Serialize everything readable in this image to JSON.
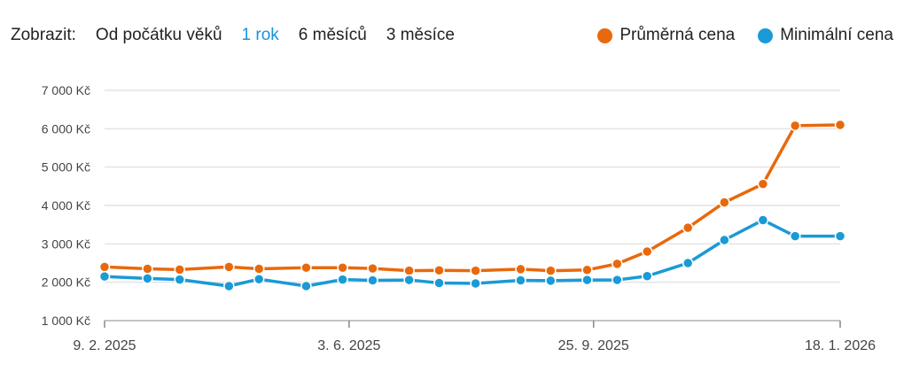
{
  "controls": {
    "show_label": "Zobrazit:",
    "ranges": [
      {
        "label": "Od počátku věků",
        "active": false
      },
      {
        "label": "1 rok",
        "active": true
      },
      {
        "label": "6 měsíců",
        "active": false
      },
      {
        "label": "3 měsíce",
        "active": false
      }
    ]
  },
  "colors": {
    "avg": "#e8690c",
    "min": "#1a9ad6",
    "grid": "#e4e4e4",
    "axis": "#888888"
  },
  "chart_data": {
    "type": "line",
    "title": "",
    "xlabel": "",
    "ylabel": "",
    "ylim": [
      1000,
      7000
    ],
    "y_ticks": [
      1000,
      2000,
      3000,
      4000,
      5000,
      6000,
      7000
    ],
    "y_tick_labels": [
      "1 000 Kč",
      "2 000 Kč",
      "3 000 Kč",
      "4 000 Kč",
      "5 000 Kč",
      "6 000 Kč",
      "7 000 Kč"
    ],
    "x_tick_labels": [
      "9. 2. 2025",
      "3. 6. 2025",
      "25. 9. 2025",
      "18. 1. 2026"
    ],
    "x_tick_dates": [
      "2025-02-09",
      "2025-06-03",
      "2025-09-25",
      "2026-01-18"
    ],
    "x": [
      "2025-02-09",
      "2025-03-01",
      "2025-03-16",
      "2025-04-08",
      "2025-04-22",
      "2025-05-14",
      "2025-05-31",
      "2025-06-14",
      "2025-07-01",
      "2025-07-15",
      "2025-08-01",
      "2025-08-22",
      "2025-09-05",
      "2025-09-22",
      "2025-10-06",
      "2025-10-20",
      "2025-11-08",
      "2025-11-25",
      "2025-12-13",
      "2025-12-28",
      "2026-01-18"
    ],
    "series": [
      {
        "name": "Průměrná cena",
        "color": "#e8690c",
        "values": [
          2400,
          2350,
          2330,
          2400,
          2350,
          2380,
          2380,
          2360,
          2300,
          2310,
          2300,
          2340,
          2300,
          2320,
          2480,
          2800,
          3420,
          4080,
          4560,
          6080,
          6100
        ]
      },
      {
        "name": "Minimální cena",
        "color": "#1a9ad6",
        "values": [
          2150,
          2100,
          2070,
          1900,
          2080,
          1900,
          2070,
          2050,
          2060,
          1980,
          1970,
          2050,
          2040,
          2060,
          2060,
          2160,
          2500,
          3100,
          3620,
          3200,
          3200
        ]
      }
    ]
  }
}
